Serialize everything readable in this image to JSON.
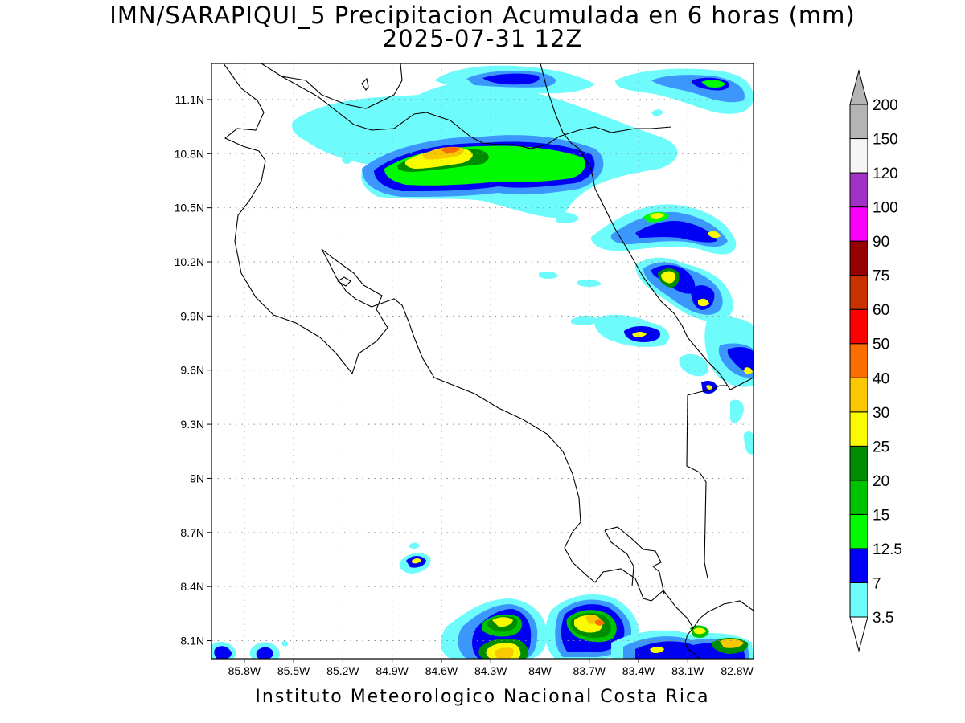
{
  "title": {
    "line1": "IMN/SARAPIQUI_5 Precipitacion Acumulada en 6 horas (mm)",
    "line2": "2025-07-31 12Z"
  },
  "footer": "Instituto Meteorologico Nacional Costa Rica",
  "map": {
    "lon_range": [
      -86.0,
      -82.7
    ],
    "lat_range": [
      8.0,
      11.3
    ],
    "lat_ticks": [
      {
        "v": 11.1,
        "label": "11.1N"
      },
      {
        "v": 10.8,
        "label": "10.8N"
      },
      {
        "v": 10.5,
        "label": "10.5N"
      },
      {
        "v": 10.2,
        "label": "10.2N"
      },
      {
        "v": 9.9,
        "label": "9.9N"
      },
      {
        "v": 9.6,
        "label": "9.6N"
      },
      {
        "v": 9.3,
        "label": "9.3N"
      },
      {
        "v": 9.0,
        "label": "9N"
      },
      {
        "v": 8.7,
        "label": "8.7N"
      },
      {
        "v": 8.4,
        "label": "8.4N"
      },
      {
        "v": 8.1,
        "label": "8.1N"
      }
    ],
    "lon_ticks": [
      {
        "v": -85.8,
        "label": "85.8W"
      },
      {
        "v": -85.5,
        "label": "85.5W"
      },
      {
        "v": -85.2,
        "label": "85.2W"
      },
      {
        "v": -84.9,
        "label": "84.9W"
      },
      {
        "v": -84.6,
        "label": "84.6W"
      },
      {
        "v": -84.3,
        "label": "84.3W"
      },
      {
        "v": -84.0,
        "label": "84W"
      },
      {
        "v": -83.7,
        "label": "83.7W"
      },
      {
        "v": -83.4,
        "label": "83.4W"
      },
      {
        "v": -83.1,
        "label": "83.1W"
      },
      {
        "v": -82.8,
        "label": "82.8W"
      }
    ],
    "grid": true,
    "colorbar": {
      "levels": [
        "3.5",
        "7",
        "12.5",
        "15",
        "20",
        "25",
        "30",
        "40",
        "50",
        "60",
        "75",
        "90",
        "100",
        "120",
        "150",
        "200"
      ],
      "colors": [
        "#6efbfb",
        "#3c97fc",
        "#0000f5",
        "#00fa00",
        "#00c300",
        "#008c00",
        "#fafa00",
        "#fac800",
        "#fa6e00",
        "#fa0000",
        "#c83200",
        "#960000",
        "#fa00fa",
        "#a032c8",
        "#f5f5f5",
        "#b4b4b4"
      ]
    },
    "precip_cells": [
      {
        "lon": -84.65,
        "lat": 10.8,
        "level": 8
      },
      {
        "lon": -84.4,
        "lat": 10.78,
        "level": 6
      },
      {
        "lon": -84.7,
        "lat": 10.7,
        "level": 5
      },
      {
        "lon": -83.9,
        "lat": 10.74,
        "level": 5
      },
      {
        "lon": -83.7,
        "lat": 10.8,
        "level": 5
      },
      {
        "lon": -83.45,
        "lat": 10.68,
        "level": 6
      },
      {
        "lon": -83.9,
        "lat": 10.62,
        "level": 5
      },
      {
        "lon": -83.2,
        "lat": 10.48,
        "level": 6
      },
      {
        "lon": -82.95,
        "lat": 10.4,
        "level": 6
      },
      {
        "lon": -83.35,
        "lat": 10.36,
        "level": 5
      },
      {
        "lon": -83.05,
        "lat": 10.12,
        "level": 7
      },
      {
        "lon": -82.85,
        "lat": 10.0,
        "level": 6
      },
      {
        "lon": -83.15,
        "lat": 9.78,
        "level": 6
      },
      {
        "lon": -82.8,
        "lat": 9.68,
        "level": 5
      },
      {
        "lon": -82.75,
        "lat": 9.6,
        "level": 6
      },
      {
        "lon": -82.9,
        "lat": 9.52,
        "level": 5
      },
      {
        "lon": -82.85,
        "lat": 11.2,
        "level": 5
      },
      {
        "lon": -84.55,
        "lat": 8.55,
        "level": 5
      },
      {
        "lon": -84.05,
        "lat": 8.22,
        "level": 8
      },
      {
        "lon": -84.0,
        "lat": 8.05,
        "level": 9
      },
      {
        "lon": -83.55,
        "lat": 8.15,
        "level": 9
      },
      {
        "lon": -83.4,
        "lat": 8.1,
        "level": 8
      },
      {
        "lon": -82.95,
        "lat": 8.1,
        "level": 6
      },
      {
        "lon": -82.75,
        "lat": 8.09,
        "level": 9
      },
      {
        "lon": -85.85,
        "lat": 8.05,
        "level": 5
      },
      {
        "lon": -85.6,
        "lat": 8.05,
        "level": 5
      },
      {
        "lon": -84.9,
        "lat": 10.95,
        "level": 1
      },
      {
        "lon": -83.8,
        "lat": 11.2,
        "level": 5
      }
    ]
  }
}
